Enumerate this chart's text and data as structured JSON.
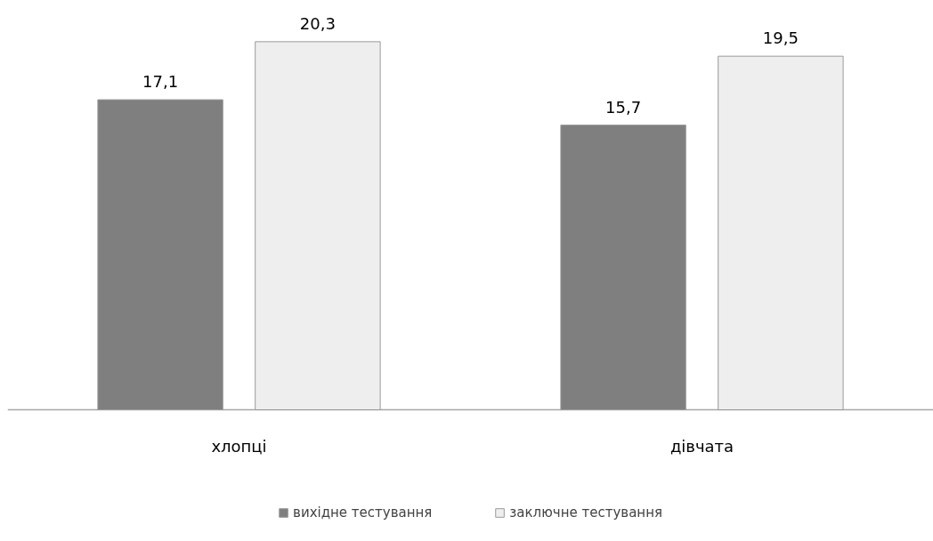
{
  "chart_data": {
    "type": "bar",
    "categories": [
      "хлопці",
      "дівчата"
    ],
    "series": [
      {
        "name": "вихідне тестування",
        "color": "#7f7f7f",
        "values": [
          17.1,
          15.7
        ],
        "value_labels": [
          "17,1",
          "15,7"
        ]
      },
      {
        "name": "заключне тестування",
        "color": "#eeeeee",
        "values": [
          20.3,
          19.5
        ],
        "value_labels": [
          "20,3",
          "19,5"
        ]
      }
    ],
    "legend": "bottom"
  }
}
